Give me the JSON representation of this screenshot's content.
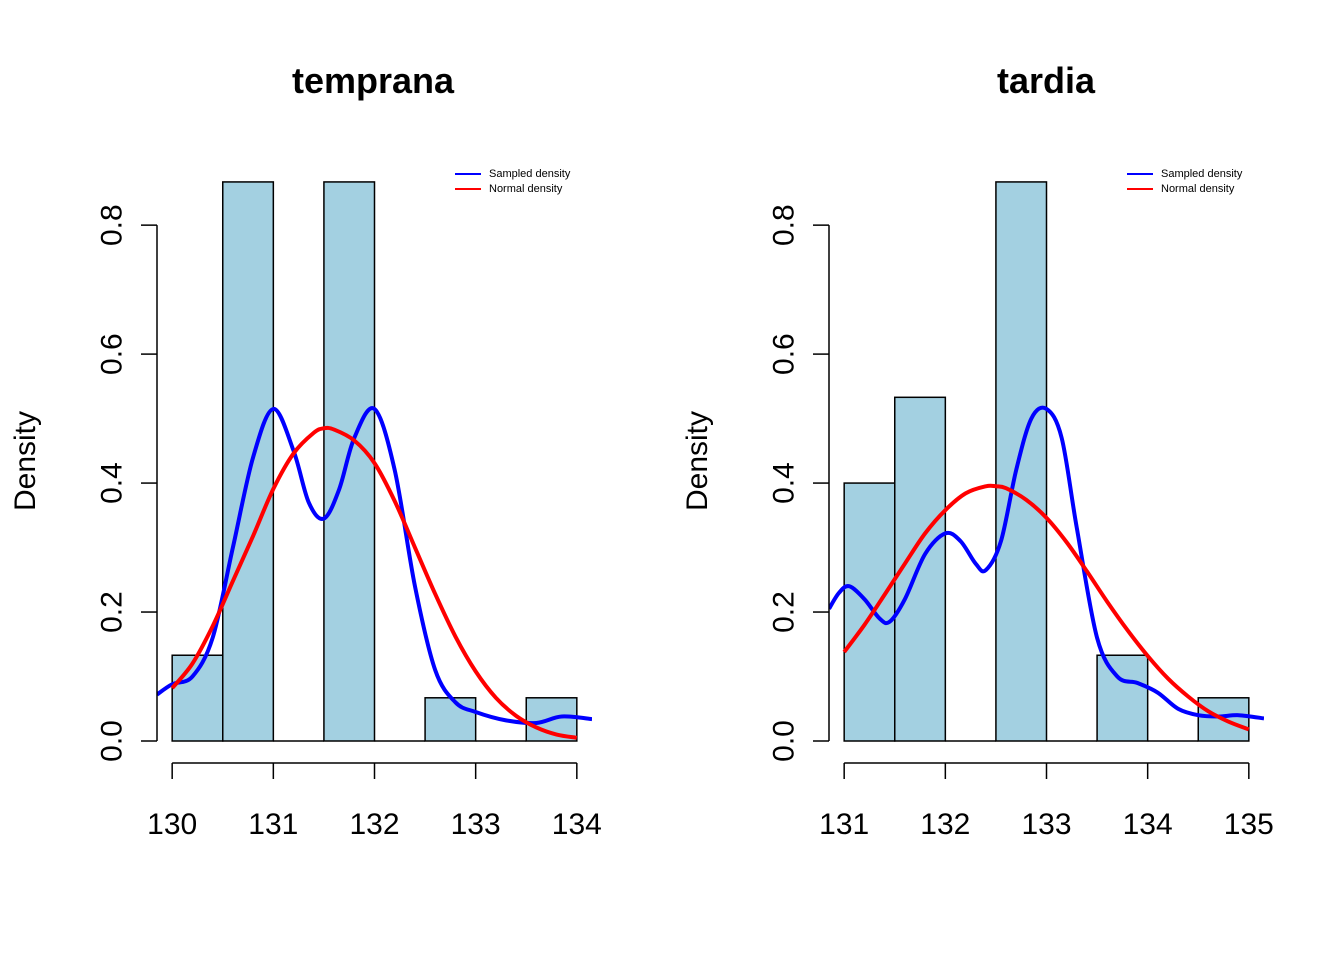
{
  "figure": {
    "background": "#ffffff",
    "bar_fill": "#a3d0e1",
    "sampled_color": "#0000ff",
    "normal_color": "#ff0000"
  },
  "chart_data": [
    {
      "type": "bar",
      "subtype": "histogram-with-density",
      "title": "temprana",
      "xlabel": "",
      "ylabel": "Density",
      "xlim": [
        129.85,
        134.15
      ],
      "ylim": [
        0,
        0.87
      ],
      "x_ticks": [
        130,
        131,
        132,
        133,
        134
      ],
      "x_tick_labels": [
        "130",
        "131",
        "132",
        "133",
        "134"
      ],
      "y_ticks": [
        0.0,
        0.2,
        0.4,
        0.6,
        0.8
      ],
      "y_tick_labels": [
        "0.0",
        "0.2",
        "0.4",
        "0.6",
        "0.8"
      ],
      "legend": {
        "position": "top-right",
        "entries": [
          "Sampled density",
          "Normal density"
        ]
      },
      "bins": [
        {
          "from": 130.0,
          "to": 130.5,
          "density": 0.133
        },
        {
          "from": 130.5,
          "to": 131.0,
          "density": 0.867
        },
        {
          "from": 131.0,
          "to": 131.5,
          "density": 0.0
        },
        {
          "from": 131.5,
          "to": 132.0,
          "density": 0.867
        },
        {
          "from": 132.0,
          "to": 132.5,
          "density": 0.0
        },
        {
          "from": 132.5,
          "to": 133.0,
          "density": 0.067
        },
        {
          "from": 133.0,
          "to": 133.5,
          "density": 0.0
        },
        {
          "from": 133.5,
          "to": 134.0,
          "density": 0.067
        }
      ],
      "series": [
        {
          "name": "Sampled density",
          "x": [
            129.85,
            130.0,
            130.2,
            130.4,
            130.6,
            130.8,
            131.0,
            131.2,
            131.35,
            131.5,
            131.65,
            131.8,
            132.0,
            132.2,
            132.4,
            132.6,
            132.8,
            133.0,
            133.3,
            133.6,
            133.85,
            134.15
          ],
          "y": [
            0.072,
            0.088,
            0.1,
            0.16,
            0.3,
            0.44,
            0.515,
            0.45,
            0.37,
            0.345,
            0.39,
            0.47,
            0.515,
            0.42,
            0.24,
            0.11,
            0.06,
            0.045,
            0.032,
            0.028,
            0.038,
            0.034
          ]
        },
        {
          "name": "Normal density",
          "x": [
            130.0,
            130.2,
            130.4,
            130.6,
            130.8,
            131.0,
            131.2,
            131.4,
            131.5,
            131.6,
            131.8,
            132.0,
            132.2,
            132.4,
            132.6,
            132.8,
            133.0,
            133.2,
            133.4,
            133.6,
            133.8,
            134.0
          ],
          "y": [
            0.082,
            0.12,
            0.178,
            0.248,
            0.318,
            0.391,
            0.446,
            0.478,
            0.485,
            0.483,
            0.466,
            0.431,
            0.372,
            0.3,
            0.228,
            0.162,
            0.108,
            0.067,
            0.039,
            0.021,
            0.01,
            0.005
          ]
        }
      ]
    },
    {
      "type": "bar",
      "subtype": "histogram-with-density",
      "title": "tardia",
      "xlabel": "",
      "ylabel": "Density",
      "xlim": [
        130.85,
        135.15
      ],
      "ylim": [
        0,
        0.87
      ],
      "x_ticks": [
        131,
        132,
        133,
        134,
        135
      ],
      "x_tick_labels": [
        "131",
        "132",
        "133",
        "134",
        "135"
      ],
      "y_ticks": [
        0.0,
        0.2,
        0.4,
        0.6,
        0.8
      ],
      "y_tick_labels": [
        "0.0",
        "0.2",
        "0.4",
        "0.6",
        "0.8"
      ],
      "legend": {
        "position": "top-right",
        "entries": [
          "Sampled density",
          "Normal density"
        ]
      },
      "bins": [
        {
          "from": 131.0,
          "to": 131.5,
          "density": 0.4
        },
        {
          "from": 131.5,
          "to": 132.0,
          "density": 0.533
        },
        {
          "from": 132.0,
          "to": 132.5,
          "density": 0.0
        },
        {
          "from": 132.5,
          "to": 133.0,
          "density": 0.867
        },
        {
          "from": 133.0,
          "to": 133.5,
          "density": 0.0
        },
        {
          "from": 133.5,
          "to": 134.0,
          "density": 0.133
        },
        {
          "from": 134.0,
          "to": 134.5,
          "density": 0.0
        },
        {
          "from": 134.5,
          "to": 135.0,
          "density": 0.067
        }
      ],
      "series": [
        {
          "name": "Sampled density",
          "x": [
            130.85,
            130.95,
            131.05,
            131.2,
            131.35,
            131.45,
            131.6,
            131.8,
            132.0,
            132.15,
            132.3,
            132.4,
            132.55,
            132.7,
            132.85,
            133.0,
            133.15,
            133.3,
            133.5,
            133.7,
            133.9,
            134.1,
            134.3,
            134.5,
            134.7,
            134.9,
            135.15
          ],
          "y": [
            0.205,
            0.23,
            0.24,
            0.22,
            0.19,
            0.185,
            0.22,
            0.29,
            0.322,
            0.31,
            0.275,
            0.265,
            0.31,
            0.42,
            0.5,
            0.515,
            0.47,
            0.33,
            0.16,
            0.1,
            0.09,
            0.075,
            0.05,
            0.04,
            0.038,
            0.04,
            0.035
          ]
        },
        {
          "name": "Normal density",
          "x": [
            131.0,
            131.2,
            131.4,
            131.6,
            131.8,
            132.0,
            132.2,
            132.4,
            132.5,
            132.6,
            132.8,
            133.0,
            133.2,
            133.4,
            133.6,
            133.8,
            134.0,
            134.2,
            134.4,
            134.6,
            134.8,
            135.0
          ],
          "y": [
            0.138,
            0.18,
            0.227,
            0.275,
            0.322,
            0.358,
            0.384,
            0.395,
            0.395,
            0.392,
            0.374,
            0.346,
            0.308,
            0.263,
            0.216,
            0.172,
            0.132,
            0.097,
            0.069,
            0.046,
            0.03,
            0.018
          ]
        }
      ]
    }
  ]
}
